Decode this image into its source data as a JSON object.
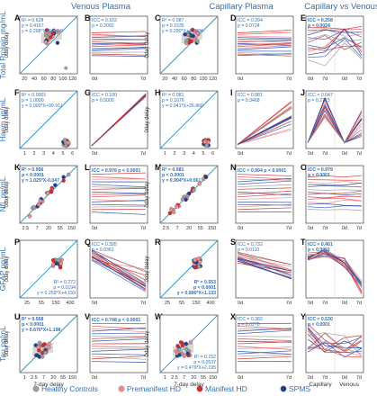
{
  "header": {
    "venous": "Venous Plasma",
    "capillary": "Capillary Plasma",
    "capven": "Capillary vs Venous"
  },
  "legend": [
    {
      "label": "Healthy Controls",
      "color": "#9e9e9e"
    },
    {
      "label": "Premanifest HD",
      "color": "#f08a8a"
    },
    {
      "label": "Manifest HD",
      "color": "#d62828"
    },
    {
      "label": "SPMS",
      "color": "#1f3c99"
    }
  ],
  "colors": {
    "identity_line": "#2f9bd6",
    "text": "#2f6fb5",
    "panel_border": "#222222"
  },
  "common": {
    "ylabel_odd": "0day delay",
    "xlabel_bottom": "7-day delay",
    "x_0d": "0d",
    "x_7d": "7d",
    "cv_capillary": "Capillary",
    "cv_venous": "Venous"
  },
  "chart_data": [
    {
      "type": "row",
      "row_label": "Total Protein mg/mL",
      "scatter_ticks": [
        "20",
        "40",
        "60",
        "80",
        "100",
        "120"
      ],
      "panels": {
        "A": {
          "letter": "A",
          "type": "scatter",
          "stats": [
            "R² = 0.628",
            "p = 0.4167",
            "y = 0.208*X+64.450"
          ],
          "stats_pos": "top-left"
        },
        "B": {
          "letter": "B",
          "type": "line",
          "stats": [
            "ICC = 0.102",
            "p = 0.2092"
          ],
          "trend": "flat"
        },
        "C": {
          "letter": "C",
          "type": "scatter",
          "stats": [
            "R² = 0.087",
            "p = 0.1535",
            "y = 0.290*X+49.004"
          ],
          "stats_pos": "top-left"
        },
        "D": {
          "letter": "D",
          "type": "line",
          "stats": [
            "ICC = 0.294",
            "p = 0.0724"
          ],
          "trend": "flat"
        },
        "E": {
          "letter": "E",
          "type": "cv",
          "stats": [
            "ICC = 0.258",
            "p = 0.0024"
          ],
          "bold": true
        }
      }
    },
    {
      "type": "row",
      "row_label": "Haem ug/mL",
      "scatter_ticks": [
        "1",
        "2",
        "3",
        "4",
        "5",
        "6"
      ],
      "panels": {
        "F": {
          "letter": "F",
          "type": "scatter",
          "stats": [
            "R² < 0.0001",
            "p = 1.0000",
            "y = 0.000*X+99.911"
          ],
          "stats_pos": "top-left"
        },
        "G": {
          "letter": "G",
          "type": "line",
          "stats": [
            "ICC = 0.100",
            "p = 0.5000"
          ],
          "trend": "up-blue"
        },
        "H": {
          "letter": "H",
          "type": "scatter",
          "stats": [
            "R² = 0.081",
            "p = 0.1676",
            "y = 0.041*X+26.860"
          ],
          "stats_pos": "top-left"
        },
        "I": {
          "letter": "I",
          "type": "line",
          "stats": [
            "ICC = 0.081",
            "p = 0.3468"
          ],
          "trend": "up-fan"
        },
        "J": {
          "letter": "J",
          "type": "cv",
          "stats": [
            "ICC = 0.047",
            "p = 0.2723"
          ],
          "bold": false
        }
      }
    },
    {
      "type": "row",
      "row_label": "NfL pg/mL",
      "scatter_ticks": [
        "2.5",
        "7",
        "20",
        "55",
        "150"
      ],
      "panels": {
        "K": {
          "letter": "K",
          "type": "scatter",
          "stats": [
            "R² = 0.956",
            "p < 0.0001",
            "y = 1.025*X-0.047"
          ],
          "stats_pos": "top-left",
          "bold": true
        },
        "L": {
          "letter": "L",
          "type": "line",
          "stats": [
            "ICC = 0.976",
            "p < 0.0001"
          ],
          "trend": "flat-spread",
          "bold": true
        },
        "M": {
          "letter": "M",
          "type": "scatter",
          "stats": [
            "R² = 0.981",
            "p < 0.0001",
            "y = 0.994*X+0.061"
          ],
          "stats_pos": "top-left",
          "bold": true
        },
        "N": {
          "letter": "N",
          "type": "line",
          "stats": [
            "ICC = 0.994",
            "p < 0.0001"
          ],
          "trend": "flat-spread",
          "bold": true
        },
        "O": {
          "letter": "O",
          "type": "cv",
          "stats": [
            "ICC = 0.979",
            "p < 0.0001"
          ],
          "bold": true
        }
      }
    },
    {
      "type": "row",
      "row_label": "GFAP pg/mL",
      "scatter_ticks": [
        "25",
        "55",
        "150",
        "400"
      ],
      "panels": {
        "P": {
          "letter": "P",
          "type": "scatter",
          "stats": [
            "R² = 0.272",
            "p = 0.0194",
            "y = 0.259*X+4.159"
          ],
          "stats_pos": "bottom-right"
        },
        "Q": {
          "letter": "Q",
          "type": "line",
          "stats": [
            "ICC = 0.395",
            "p = 0.0361"
          ],
          "trend": "down"
        },
        "R": {
          "letter": "R",
          "type": "scatter",
          "stats": [
            "R² = 0.553",
            "p < 0.0001",
            "y = 0.890*X+1.133"
          ],
          "stats_pos": "bottom-right",
          "bold": true
        },
        "S": {
          "letter": "S",
          "type": "line",
          "stats": [
            "ICC = 0.732",
            "p = 0.0110"
          ],
          "trend": "down-slight"
        },
        "T": {
          "letter": "T",
          "type": "cv",
          "stats": [
            "ICC = 0.401",
            "p < 0.0001"
          ],
          "bold": true
        }
      }
    },
    {
      "type": "row",
      "row_label": "Tau pg/mL",
      "scatter_ticks": [
        "1",
        "2.5",
        "7",
        "20",
        "55",
        "150"
      ],
      "panels": {
        "U": {
          "letter": "U",
          "type": "scatter",
          "stats": [
            "R² = 0.568",
            "p < 0.0001",
            "y = 0.670*X+1.198"
          ],
          "stats_pos": "top-left",
          "bold": true
        },
        "V": {
          "letter": "V",
          "type": "line",
          "stats": [
            "ICC = 0.748",
            "p < 0.0001"
          ],
          "trend": "flat-spread",
          "bold": true
        },
        "W": {
          "letter": "W",
          "type": "scatter",
          "stats": [
            "R² = 0.152",
            "p = 0.0537",
            "y = 0.479*X+2.195"
          ],
          "stats_pos": "bottom-right"
        },
        "X": {
          "letter": "X",
          "type": "line",
          "stats": [
            "ICC = 0.382",
            "p = 0.0270"
          ],
          "trend": "flat-spread"
        },
        "Y": {
          "letter": "Y",
          "type": "cv",
          "stats": [
            "ICC = 0.530",
            "p < 0.0001"
          ],
          "bold": true
        }
      }
    }
  ]
}
